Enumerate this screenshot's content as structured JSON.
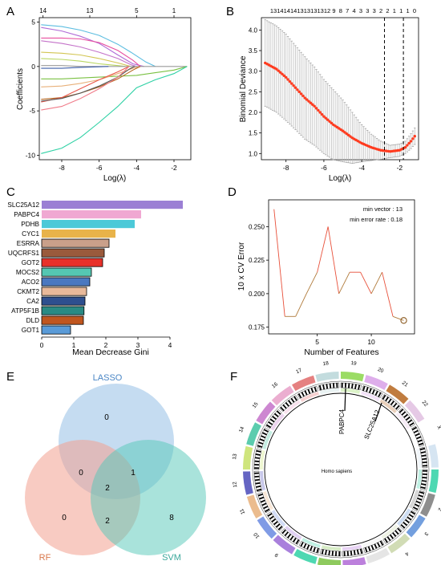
{
  "panels": {
    "A": {
      "letter": "A",
      "xlabel": "Log(λ)",
      "ylabel": "Coefficients",
      "top_ticks": [
        "14",
        "13",
        "5",
        "1"
      ],
      "x_ticks": [
        "-8",
        "-6",
        "-4",
        "-2"
      ],
      "y_ticks": [
        "5",
        "0",
        "-5",
        "-10"
      ]
    },
    "B": {
      "letter": "B",
      "xlabel": "Log(λ)",
      "ylabel": "Binomial Deviance",
      "top_ticks": [
        "13",
        "14",
        "14",
        "14",
        "13",
        "13",
        "13",
        "13",
        "12",
        "9",
        "8",
        "7",
        "4",
        "3",
        "3",
        "3",
        "2",
        "2",
        "1",
        "1",
        "1",
        "0"
      ],
      "x_ticks": [
        "-8",
        "-6",
        "-4",
        "-2"
      ],
      "y_ticks": [
        "4.0",
        "3.5",
        "3.0",
        "2.5",
        "2.0",
        "1.5",
        "1.0"
      ]
    },
    "C": {
      "letter": "C",
      "xlabel": "Mean Decrease Gini",
      "x_ticks": [
        "0",
        "1",
        "2",
        "3",
        "4"
      ]
    },
    "D": {
      "letter": "D",
      "xlabel": "Number of Features",
      "ylabel": "10 x CV Error",
      "annotation_1": "min vector : 13",
      "annotation_2": "min error rate : 0.18",
      "x_ticks": [
        "5",
        "10"
      ],
      "y_ticks": [
        "0.250",
        "0.225",
        "0.200",
        "0.175"
      ]
    },
    "E": {
      "letter": "E",
      "sets": {
        "lasso": "LASSO",
        "rf": "RF",
        "svm": "SVM"
      },
      "counts": {
        "lasso_only": "0",
        "rf_only": "0",
        "svm_only": "8",
        "lasso_rf": "0",
        "lasso_svm": "1",
        "rf_svm": "2",
        "all": "2"
      },
      "colors": {
        "lasso": "#7fb2e0",
        "rf": "#f2a18f",
        "svm": "#53c7b8",
        "lasso_label": "#4a86c5",
        "rf_label": "#d9774a",
        "svm_label": "#3aa89b"
      }
    },
    "F": {
      "letter": "F",
      "center_label": "Homo sapiens",
      "gene_labels": [
        "PABPC4",
        "SLC25A12"
      ],
      "chromosomes": [
        "1",
        "2",
        "3",
        "4",
        "5",
        "6",
        "7",
        "8",
        "9",
        "10",
        "11",
        "12",
        "13",
        "14",
        "15",
        "16",
        "17",
        "18",
        "19",
        "20",
        "21",
        "22",
        "X",
        "Y"
      ]
    }
  },
  "chart_data": [
    {
      "panel": "A",
      "type": "line",
      "xlabel": "Log(λ)",
      "ylabel": "Coefficients",
      "xlim": [
        -9.2,
        -1.1
      ],
      "ylim": [
        -10.5,
        5.5
      ],
      "top_axis_ticks": [
        {
          "x": -9.0,
          "label": "14"
        },
        {
          "x": -6.5,
          "label": "13"
        },
        {
          "x": -4.0,
          "label": "5"
        },
        {
          "x": -2.0,
          "label": "1"
        }
      ],
      "series": [
        {
          "color": "#5bbde0",
          "values": [
            [
              -9.1,
              4.7
            ],
            [
              -8,
              4.5
            ],
            [
              -7,
              4.1
            ],
            [
              -6,
              3.5
            ],
            [
              -5,
              2.5
            ],
            [
              -4.3,
              1.6
            ],
            [
              -3.5,
              0.5
            ],
            [
              -3,
              0
            ]
          ]
        },
        {
          "color": "#b06ad6",
          "values": [
            [
              -9.1,
              4.4
            ],
            [
              -8,
              4.0
            ],
            [
              -7,
              3.4
            ],
            [
              -6,
              2.6
            ],
            [
              -5,
              1.3
            ],
            [
              -4.2,
              0.3
            ],
            [
              -3.6,
              0
            ]
          ]
        },
        {
          "color": "#e84f9f",
          "values": [
            [
              -9.1,
              3.2
            ],
            [
              -8,
              3.2
            ],
            [
              -7,
              3.1
            ],
            [
              -6,
              2.7
            ],
            [
              -5,
              1.8
            ],
            [
              -4.2,
              0.7
            ],
            [
              -3.8,
              0
            ]
          ]
        },
        {
          "color": "#c472c9",
          "values": [
            [
              -9.1,
              2.9
            ],
            [
              -8,
              2.6
            ],
            [
              -7,
              2.2
            ],
            [
              -6,
              1.6
            ],
            [
              -5,
              0.9
            ],
            [
              -4.3,
              0.2
            ],
            [
              -4,
              0
            ]
          ]
        },
        {
          "color": "#d2c552",
          "values": [
            [
              -9.1,
              1.6
            ],
            [
              -8,
              1.5
            ],
            [
              -7,
              1.3
            ],
            [
              -6,
              0.9
            ],
            [
              -5,
              0.4
            ],
            [
              -4.3,
              0
            ]
          ]
        },
        {
          "color": "#b8d660",
          "values": [
            [
              -9.1,
              0.9
            ],
            [
              -8,
              0.8
            ],
            [
              -7,
              0.6
            ],
            [
              -6,
              0.3
            ],
            [
              -5,
              0.1
            ],
            [
              -4.6,
              0
            ]
          ]
        },
        {
          "color": "#9a9a9a",
          "values": [
            [
              -9.1,
              0.1
            ],
            [
              -8,
              0.1
            ],
            [
              -7,
              0
            ],
            [
              -1.3,
              0
            ]
          ]
        },
        {
          "color": "#3f5fa8",
          "values": [
            [
              -9.1,
              -0.2
            ],
            [
              -8,
              -0.2
            ],
            [
              -7,
              -0.1
            ],
            [
              -5.5,
              0
            ]
          ]
        },
        {
          "color": "#7ac142",
          "values": [
            [
              -9.1,
              -1.4
            ],
            [
              -8,
              -1.4
            ],
            [
              -7,
              -1.3
            ],
            [
              -6,
              -1.2
            ],
            [
              -5,
              -1.1
            ],
            [
              -4,
              -1.0
            ],
            [
              -3,
              -0.7
            ],
            [
              -2,
              -0.4
            ],
            [
              -1.3,
              0
            ]
          ]
        },
        {
          "color": "#e8b07a",
          "values": [
            [
              -9.1,
              -2.3
            ],
            [
              -8,
              -2.2
            ],
            [
              -7,
              -1.9
            ],
            [
              -6,
              -1.5
            ],
            [
              -5,
              -0.8
            ],
            [
              -4.2,
              -0.2
            ],
            [
              -3.8,
              0
            ]
          ]
        },
        {
          "color": "#b5651d",
          "values": [
            [
              -9.1,
              -3.7
            ],
            [
              -8,
              -3.5
            ],
            [
              -7,
              -3.0
            ],
            [
              -6,
              -2.3
            ],
            [
              -5,
              -1.4
            ],
            [
              -4.2,
              -0.4
            ],
            [
              -3.8,
              0
            ]
          ]
        },
        {
          "color": "#e8564a",
          "values": [
            [
              -9.1,
              -4.0
            ],
            [
              -8,
              -3.5
            ],
            [
              -7,
              -2.5
            ],
            [
              -6,
              -1.5
            ],
            [
              -5,
              -0.6
            ],
            [
              -4.4,
              0
            ]
          ]
        },
        {
          "color": "#555555",
          "values": [
            [
              -9.1,
              -3.9
            ],
            [
              -8,
              -3.6
            ],
            [
              -7,
              -3.0
            ],
            [
              -6,
              -2.2
            ],
            [
              -5,
              -1.2
            ],
            [
              -4.4,
              -0.3
            ],
            [
              -4.1,
              0
            ]
          ]
        },
        {
          "color": "#f07c8a",
          "values": [
            [
              -9.1,
              -4.9
            ],
            [
              -8,
              -4.5
            ],
            [
              -7,
              -3.6
            ],
            [
              -6,
              -2.5
            ],
            [
              -5,
              -1.2
            ],
            [
              -4.4,
              0
            ]
          ]
        },
        {
          "color": "#2fd1a5",
          "values": [
            [
              -9.1,
              -9.8
            ],
            [
              -8,
              -9.2
            ],
            [
              -7,
              -8.0
            ],
            [
              -6,
              -6.3
            ],
            [
              -5,
              -4.5
            ],
            [
              -4,
              -2.4
            ],
            [
              -3,
              -1.5
            ],
            [
              -2,
              -0.8
            ],
            [
              -1.3,
              0
            ]
          ]
        }
      ]
    },
    {
      "panel": "B",
      "type": "scatter",
      "xlabel": "Log(λ)",
      "ylabel": "Binomial Deviance",
      "xlim": [
        -9.3,
        -1.0
      ],
      "ylim": [
        0.85,
        4.3
      ],
      "vlines": [
        -2.8,
        -1.8
      ],
      "curve": {
        "x": [
          -9.1,
          -8.5,
          -8,
          -7.5,
          -7,
          -6.5,
          -6,
          -5.5,
          -5,
          -4.5,
          -4,
          -3.5,
          -3,
          -2.5,
          -2,
          -1.7,
          -1.4,
          -1.2
        ],
        "mean": [
          3.2,
          3.05,
          2.85,
          2.6,
          2.35,
          2.15,
          1.9,
          1.7,
          1.55,
          1.38,
          1.25,
          1.15,
          1.08,
          1.05,
          1.08,
          1.15,
          1.3,
          1.42
        ],
        "err": [
          1.05,
          1.05,
          1.05,
          1.02,
          1.0,
          0.95,
          0.9,
          0.85,
          0.75,
          0.62,
          0.45,
          0.32,
          0.22,
          0.15,
          0.15,
          0.15,
          0.18,
          0.2
        ]
      }
    },
    {
      "panel": "C",
      "type": "bar",
      "orientation": "horizontal",
      "xlabel": "Mean Decrease Gini",
      "xlim": [
        0,
        4.5
      ],
      "categories": [
        "SLC25A12",
        "PABPC4",
        "PDHB",
        "CYC1",
        "ESRRA",
        "UQCRFS1",
        "GOT2",
        "MOCS2",
        "ACO2",
        "CKMT2",
        "CA2",
        "ATP5F1B",
        "DLD",
        "GOT1"
      ],
      "values": [
        4.4,
        3.1,
        2.9,
        2.3,
        2.1,
        1.95,
        1.9,
        1.55,
        1.5,
        1.4,
        1.35,
        1.32,
        1.3,
        0.9
      ],
      "colors": [
        "#9b7fd4",
        "#f0a8d2",
        "#4cc9d8",
        "#e8b34a",
        "#c9a08a",
        "#9a5a3c",
        "#e8312a",
        "#55c7b2",
        "#4a78c0",
        "#e8b99a",
        "#2e4f8f",
        "#2a8a84",
        "#c0561f",
        "#5a9bd8"
      ]
    },
    {
      "panel": "D",
      "type": "line",
      "xlabel": "Number of Features",
      "ylabel": "10 x CV Error",
      "xlim": [
        0.5,
        14
      ],
      "ylim": [
        0.17,
        0.27
      ],
      "x": [
        1,
        2,
        3,
        4,
        5,
        6,
        7,
        8,
        9,
        10,
        11,
        12,
        13
      ],
      "y": [
        0.263,
        0.183,
        0.183,
        0.2,
        0.216,
        0.25,
        0.2,
        0.216,
        0.216,
        0.2,
        0.216,
        0.183,
        0.18
      ],
      "highlight": {
        "x": 13,
        "y": 0.18
      }
    }
  ]
}
